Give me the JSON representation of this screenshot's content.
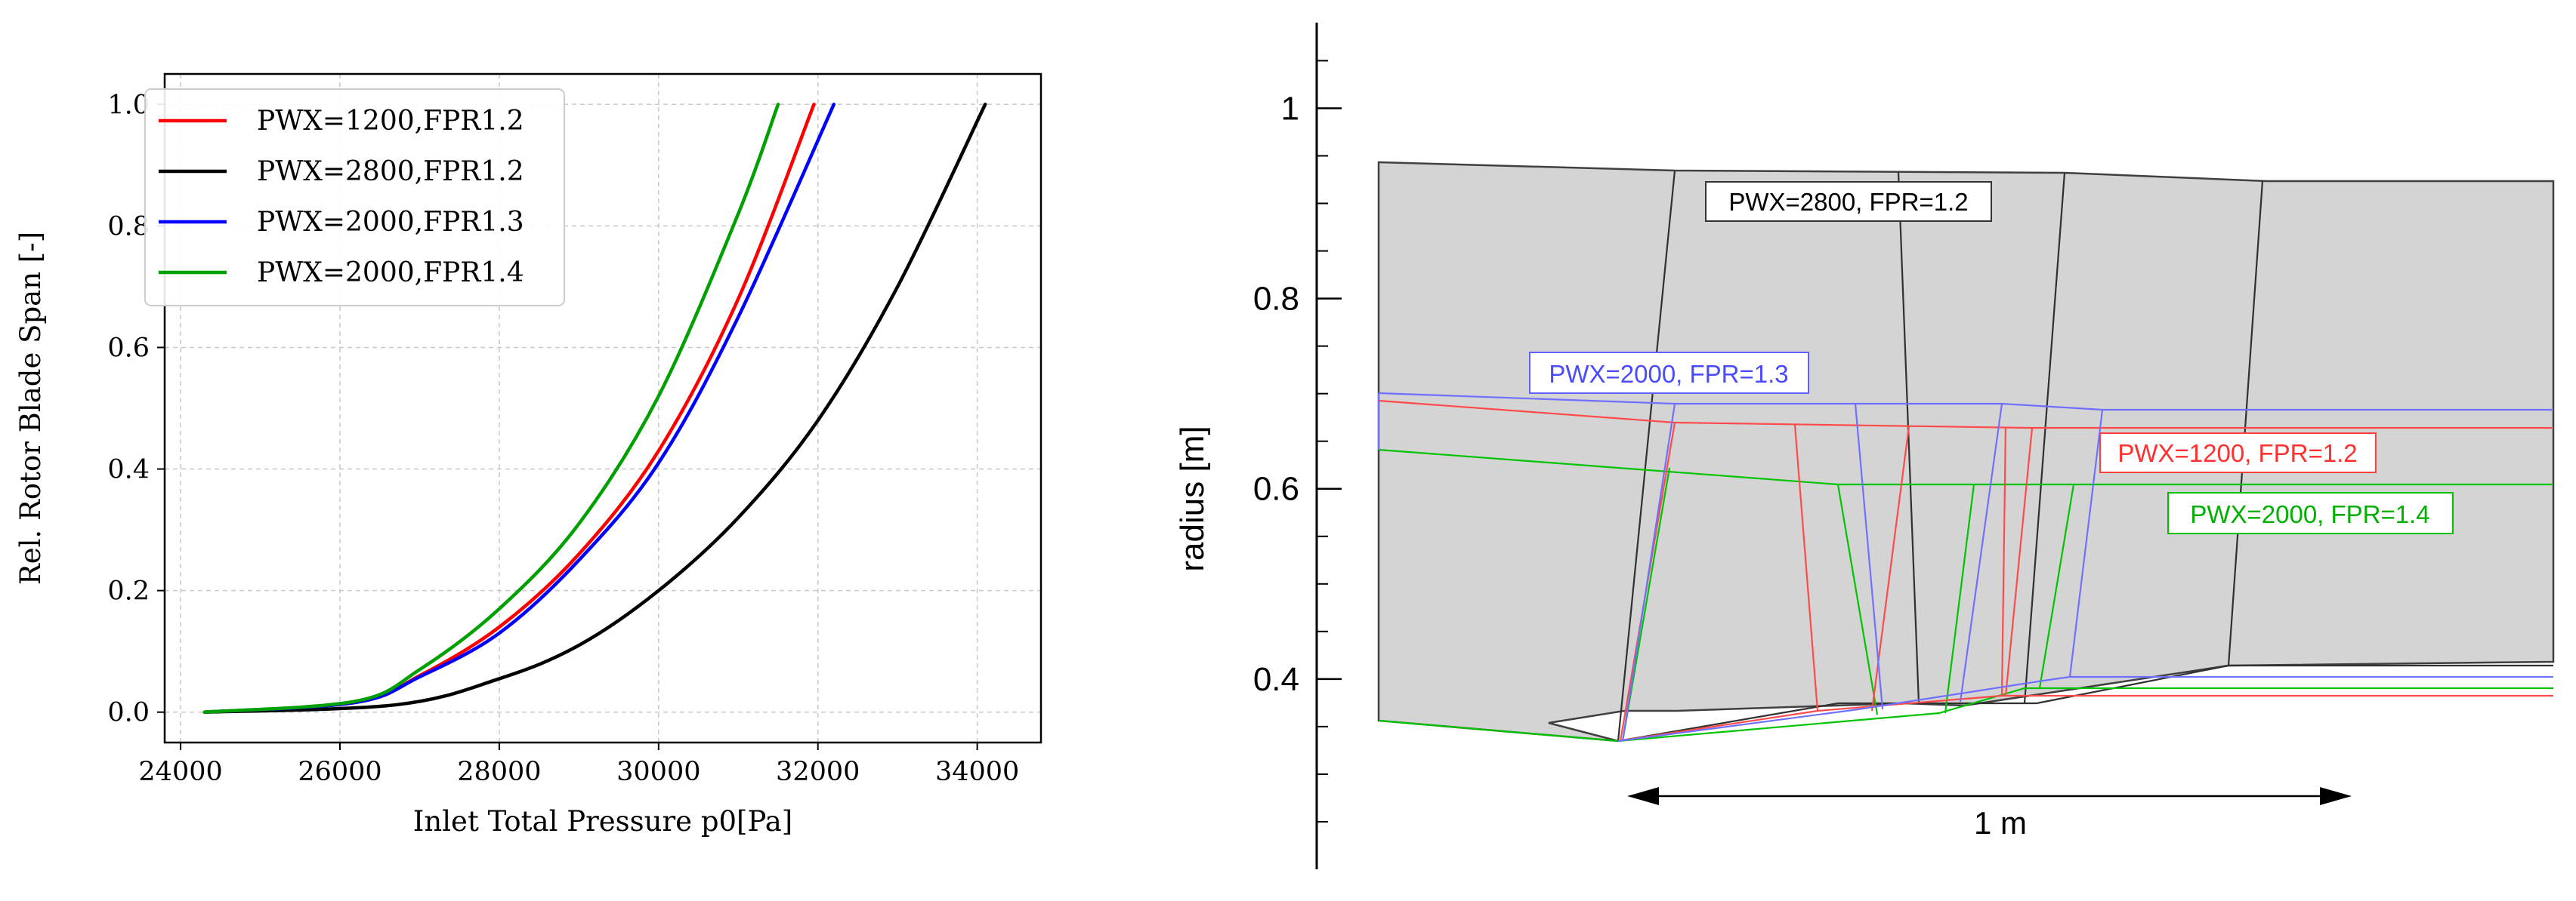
{
  "left_chart": {
    "xlabel": "Inlet Total Pressure p0[Pa]",
    "ylabel": "Rel. Rotor Blade Span [-]",
    "xticks": [
      "24000",
      "26000",
      "28000",
      "30000",
      "32000",
      "34000"
    ],
    "yticks": [
      "0.0",
      "0.2",
      "0.4",
      "0.6",
      "0.8",
      "1.0"
    ]
  },
  "right_chart": {
    "ylabel": "radius [m]",
    "yticks": [
      "0.4",
      "0.6",
      "0.8",
      "1"
    ],
    "scale_label": "1 m",
    "labels": {
      "black": "PWX=2800, FPR=1.2",
      "blue": "PWX=2000, FPR=1.3",
      "red": "PWX=1200, FPR=1.2",
      "green": "PWX=2000, FPR=1.4"
    }
  },
  "chart_data": [
    {
      "type": "line",
      "xlabel": "Inlet Total Pressure p0[Pa]",
      "ylabel": "Rel. Rotor Blade Span [-]",
      "xlim": [
        23800,
        34800
      ],
      "ylim": [
        -0.05,
        1.05
      ],
      "xticks": [
        24000,
        26000,
        28000,
        30000,
        32000,
        34000
      ],
      "yticks": [
        0.0,
        0.2,
        0.4,
        0.6,
        0.8,
        1.0
      ],
      "grid": true,
      "legend_position": "top-left",
      "series": [
        {
          "name": "PWX=1200,FPR1.2",
          "color": "#ff0000",
          "x": [
            24300,
            26200,
            27000,
            28000,
            29000,
            30000,
            31000,
            31950
          ],
          "y": [
            0.0,
            0.016,
            0.06,
            0.14,
            0.26,
            0.43,
            0.68,
            1.0
          ]
        },
        {
          "name": "PWX=2800,FPR1.2",
          "color": "#000000",
          "x": [
            24300,
            26700,
            28000,
            29000,
            30000,
            31000,
            32000,
            33000,
            34100
          ],
          "y": [
            0.0,
            0.012,
            0.055,
            0.11,
            0.2,
            0.32,
            0.48,
            0.7,
            1.0
          ]
        },
        {
          "name": "PWX=2000,FPR1.3",
          "color": "#0000ff",
          "x": [
            24300,
            26200,
            27000,
            28000,
            29000,
            30000,
            31000,
            32200
          ],
          "y": [
            0.0,
            0.016,
            0.058,
            0.13,
            0.25,
            0.41,
            0.65,
            1.0
          ]
        },
        {
          "name": "PWX=2000,FPR1.4",
          "color": "#00a000",
          "x": [
            24300,
            26200,
            27000,
            28000,
            29000,
            30000,
            31000,
            31500
          ],
          "y": [
            0.0,
            0.018,
            0.07,
            0.17,
            0.31,
            0.52,
            0.82,
            1.0
          ]
        }
      ]
    },
    {
      "type": "diagram",
      "ylabel": "radius [m]",
      "ylim": [
        0.2,
        1.09
      ],
      "yticks": [
        0.4,
        0.6,
        0.8,
        1.0
      ],
      "scale_bar_m": 1.0,
      "scale_bar_label": "1 m",
      "xlim_m": [
        -0.34,
        1.31
      ],
      "series": [
        {
          "name": "PWX=2800, FPR=1.2",
          "color": "#333333",
          "hub": [
            [
              -0.34,
              0.38
            ],
            [
              0.0,
              0.35
            ],
            [
              0.33,
              0.39
            ],
            [
              0.58,
              0.39
            ],
            [
              0.87,
              0.43
            ],
            [
              1.31,
              0.43
            ]
          ],
          "casing": [
            [
              -0.34,
              0.94
            ],
            [
              0.06,
              0.93
            ],
            [
              0.6,
              0.93
            ],
            [
              0.87,
              0.92
            ],
            [
              1.31,
              0.92
            ]
          ]
        },
        {
          "name": "PWX=2000, FPR=1.3",
          "color": "#6060ff",
          "hub": [
            [
              0.0,
              0.35
            ],
            [
              0.3,
              0.38
            ],
            [
              0.52,
              0.39
            ],
            [
              0.62,
              0.42
            ],
            [
              1.31,
              0.42
            ]
          ],
          "casing": [
            [
              -0.34,
              0.71
            ],
            [
              0.06,
              0.7
            ],
            [
              0.52,
              0.7
            ],
            [
              0.66,
              0.69
            ],
            [
              1.31,
              0.69
            ]
          ]
        },
        {
          "name": "PWX=1200, FPR=1.2",
          "color": "#ff4040",
          "hub": [
            [
              0.0,
              0.35
            ],
            [
              0.24,
              0.39
            ],
            [
              0.51,
              0.4
            ],
            [
              1.31,
              0.4
            ]
          ],
          "casing": [
            [
              -0.34,
              0.7
            ],
            [
              0.06,
              0.68
            ],
            [
              0.51,
              0.67
            ],
            [
              1.31,
              0.67
            ]
          ]
        },
        {
          "name": "PWX=2000, FPR=1.4",
          "color": "#00c000",
          "hub": [
            [
              -0.34,
              0.38
            ],
            [
              0.0,
              0.35
            ],
            [
              0.4,
              0.38
            ],
            [
              0.61,
              0.41
            ],
            [
              1.31,
              0.41
            ]
          ],
          "casing": [
            [
              -0.34,
              0.65
            ],
            [
              0.21,
              0.62
            ],
            [
              0.64,
              0.62
            ],
            [
              1.31,
              0.62
            ]
          ]
        }
      ]
    }
  ]
}
